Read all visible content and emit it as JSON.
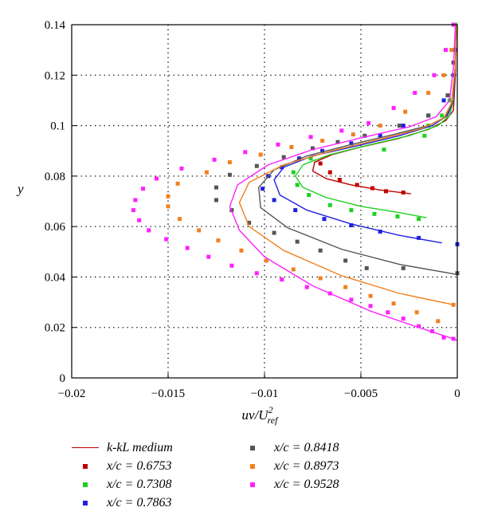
{
  "chart_data": {
    "type": "line",
    "xlabel_main": "uv/U",
    "xlabel_sup": "2",
    "xlabel_sub": "ref",
    "ylabel": "y",
    "xlim": [
      -0.02,
      0
    ],
    "ylim": [
      0,
      0.14
    ],
    "x_ticks": [
      -0.02,
      -0.015,
      -0.01,
      -0.005,
      0
    ],
    "x_tick_labels": [
      "−0.02",
      "−0.015",
      "−0.01",
      "−0.005",
      "0"
    ],
    "y_ticks": [
      0,
      0.02,
      0.04,
      0.06,
      0.08,
      0.1,
      0.12,
      0.14
    ],
    "y_tick_labels": [
      "0",
      "0.02",
      "0.04",
      "0.06",
      "0.08",
      "0.1",
      "0.12",
      "0.14"
    ],
    "grid": "dotted",
    "legend": [
      {
        "label": "k-kL medium",
        "kind": "line",
        "color": "#c00000"
      },
      {
        "label": "x/c = 0.6753",
        "kind": "marker",
        "color": "#c00000"
      },
      {
        "label": "x/c = 0.7308",
        "kind": "marker",
        "color": "#1fd01f"
      },
      {
        "label": "x/c = 0.7863",
        "kind": "marker",
        "color": "#2020e0"
      },
      {
        "label": "x/c = 0.8418",
        "kind": "marker",
        "color": "#555555"
      },
      {
        "label": "x/c = 0.8973",
        "kind": "marker",
        "color": "#f08020"
      },
      {
        "label": "x/c = 0.9528",
        "kind": "marker",
        "color": "#ff20ff"
      }
    ],
    "line_series": [
      {
        "color": "#c00000",
        "x": [
          -0.0024,
          -0.004,
          -0.0055,
          -0.0068,
          -0.0075,
          -0.0074,
          -0.0065,
          -0.005,
          -0.003,
          -0.0015,
          -0.0006,
          -0.0002,
          -0.0001,
          -5e-05
        ],
        "y": [
          0.073,
          0.0745,
          0.0765,
          0.079,
          0.082,
          0.0855,
          0.0885,
          0.0915,
          0.095,
          0.0985,
          0.102,
          0.106,
          0.12,
          0.14
        ]
      },
      {
        "color": "#1fd01f",
        "x": [
          -0.0016,
          -0.003,
          -0.005,
          -0.0068,
          -0.008,
          -0.0084,
          -0.008,
          -0.0066,
          -0.0045,
          -0.0025,
          -0.001,
          -0.0004,
          -0.0002,
          -0.0001,
          -5e-05
        ],
        "y": [
          0.0635,
          0.0655,
          0.068,
          0.0715,
          0.0755,
          0.08,
          0.0845,
          0.0885,
          0.0925,
          0.096,
          0.1,
          0.104,
          0.11,
          0.125,
          0.14
        ]
      },
      {
        "color": "#2020e0",
        "x": [
          -0.0008,
          -0.003,
          -0.0055,
          -0.0078,
          -0.0092,
          -0.0095,
          -0.009,
          -0.0075,
          -0.0052,
          -0.003,
          -0.0013,
          -0.0005,
          -0.0002,
          -0.0001,
          -5e-05
        ],
        "y": [
          0.0535,
          0.0565,
          0.061,
          0.0665,
          0.0725,
          0.0785,
          0.0835,
          0.088,
          0.092,
          0.096,
          0.1,
          0.104,
          0.11,
          0.125,
          0.14
        ]
      },
      {
        "color": "#555555",
        "x": [
          0,
          -0.003,
          -0.006,
          -0.0088,
          -0.0102,
          -0.0103,
          -0.0095,
          -0.0078,
          -0.0055,
          -0.0033,
          -0.0015,
          -0.0006,
          -0.0002,
          -0.0001,
          -5e-05
        ],
        "y": [
          0.041,
          0.045,
          0.051,
          0.0595,
          0.0675,
          0.0755,
          0.0825,
          0.088,
          0.0925,
          0.0965,
          0.1,
          0.1035,
          0.11,
          0.125,
          0.14
        ]
      },
      {
        "color": "#f08020",
        "x": [
          -0.0002,
          -0.003,
          -0.006,
          -0.009,
          -0.0108,
          -0.0113,
          -0.0108,
          -0.009,
          -0.0065,
          -0.0038,
          -0.0018,
          -0.0007,
          -0.0003,
          -0.0001,
          -5e-05
        ],
        "y": [
          0.029,
          0.0335,
          0.0405,
          0.0505,
          0.06,
          0.0695,
          0.0775,
          0.0845,
          0.09,
          0.095,
          0.099,
          0.103,
          0.109,
          0.124,
          0.14
        ]
      },
      {
        "color": "#ff20ff",
        "x": [
          0,
          -0.002,
          -0.0045,
          -0.0075,
          -0.01,
          -0.0113,
          -0.0118,
          -0.0114,
          -0.0098,
          -0.0075,
          -0.0048,
          -0.0025,
          -0.0011,
          -0.0004,
          -0.0002,
          -0.0001
        ],
        "y": [
          0.015,
          0.02,
          0.0265,
          0.0365,
          0.048,
          0.0585,
          0.068,
          0.0765,
          0.0845,
          0.0905,
          0.0955,
          0.0995,
          0.1035,
          0.11,
          0.123,
          0.14
        ]
      }
    ],
    "marker_series": [
      {
        "name": "x/c = 0.6753",
        "color": "#c00000",
        "x": [
          -0.0071,
          -0.0066,
          -0.0061,
          -0.0052,
          -0.0044,
          -0.0037,
          -0.0028
        ],
        "y": [
          0.085,
          0.0815,
          0.0785,
          0.0765,
          0.0752,
          0.074,
          0.0735
        ]
      },
      {
        "name": "x/c = 0.7308",
        "color": "#1fd01f",
        "x": [
          -0.0076,
          -0.0085,
          -0.0083,
          -0.0077,
          -0.0066,
          -0.0055,
          -0.0043,
          -0.0031,
          -0.002,
          -0.0038,
          -0.0017,
          -0.0015,
          -0.0008,
          -0.0004,
          -0.0002,
          -0.0001,
          -0.0001
        ],
        "y": [
          0.087,
          0.0815,
          0.0765,
          0.0725,
          0.0685,
          0.0665,
          0.065,
          0.064,
          0.063,
          0.0905,
          0.096,
          0.1,
          0.104,
          0.11,
          0.12,
          0.13,
          0.14
        ]
      },
      {
        "name": "x/c = 0.7863",
        "color": "#2020e0",
        "x": [
          -0.0098,
          -0.0101,
          -0.0095,
          -0.0084,
          -0.0069,
          -0.0055,
          -0.004,
          -0.002,
          0,
          -0.0091,
          -0.0082,
          -0.007,
          -0.0055,
          -0.004,
          -0.0028,
          -0.0015,
          -0.0007,
          -0.0002,
          -0.0001
        ],
        "y": [
          0.08,
          0.075,
          0.0705,
          0.0665,
          0.063,
          0.0605,
          0.058,
          0.0555,
          0.053,
          0.0835,
          0.087,
          0.09,
          0.093,
          0.096,
          0.1,
          0.104,
          0.11,
          0.12,
          0.13
        ]
      },
      {
        "name": "x/c = 0.8418",
        "color": "#555555",
        "x": [
          -0.0118,
          -0.0125,
          -0.0125,
          -0.0117,
          -0.0108,
          -0.0095,
          -0.0083,
          -0.0071,
          -0.0058,
          -0.0047,
          -0.0028,
          0,
          -0.0104,
          -0.009,
          -0.0075,
          -0.0062,
          -0.0048,
          -0.003,
          -0.0015,
          -0.0005,
          -0.0002
        ],
        "y": [
          0.0805,
          0.0755,
          0.0705,
          0.0665,
          0.0615,
          0.0575,
          0.054,
          0.0505,
          0.0465,
          0.0435,
          0.0435,
          0.0415,
          0.084,
          0.0875,
          0.091,
          0.0935,
          0.096,
          0.1,
          0.104,
          0.112,
          0.125
        ]
      },
      {
        "name": "x/c = 0.8973",
        "color": "#f08020",
        "x": [
          -0.013,
          -0.0145,
          -0.015,
          -0.015,
          -0.0144,
          -0.0134,
          -0.0124,
          -0.0112,
          -0.0099,
          -0.0085,
          -0.0071,
          -0.0058,
          -0.0045,
          -0.0033,
          -0.0021,
          -0.001,
          -0.0002,
          -0.0118,
          -0.0102,
          -0.0086,
          -0.007,
          -0.0054,
          -0.004,
          -0.0027,
          -0.0015,
          -0.0007,
          -0.0003
        ],
        "y": [
          0.0815,
          0.077,
          0.072,
          0.068,
          0.063,
          0.0585,
          0.0545,
          0.0505,
          0.0465,
          0.043,
          0.0395,
          0.036,
          0.0325,
          0.0295,
          0.026,
          0.0225,
          0.029,
          0.0855,
          0.0885,
          0.0915,
          0.094,
          0.0965,
          0.1,
          0.1055,
          0.113,
          0.12,
          0.13
        ]
      },
      {
        "name": "x/c = 0.9528",
        "color": "#ff20ff",
        "x": [
          -0.0143,
          -0.0156,
          -0.0163,
          -0.0167,
          -0.0168,
          -0.0165,
          -0.016,
          -0.0151,
          -0.014,
          -0.0129,
          -0.0117,
          -0.0104,
          -0.0091,
          -0.0078,
          -0.0066,
          -0.0055,
          -0.0045,
          -0.0036,
          -0.0028,
          -0.002,
          -0.0013,
          -0.0007,
          -0.0002,
          -0.0126,
          -0.011,
          -0.0093,
          -0.0076,
          -0.006,
          -0.0046,
          -0.0033,
          -0.0022,
          -0.0012,
          -0.0006,
          -0.0002
        ],
        "y": [
          0.083,
          0.079,
          0.075,
          0.0705,
          0.0665,
          0.0625,
          0.0585,
          0.055,
          0.0515,
          0.048,
          0.0445,
          0.0415,
          0.039,
          0.036,
          0.0335,
          0.031,
          0.0285,
          0.026,
          0.0235,
          0.0205,
          0.0185,
          0.016,
          0.0155,
          0.0865,
          0.0895,
          0.0925,
          0.0955,
          0.098,
          0.101,
          0.107,
          0.113,
          0.12,
          0.13,
          0.14
        ]
      }
    ]
  }
}
